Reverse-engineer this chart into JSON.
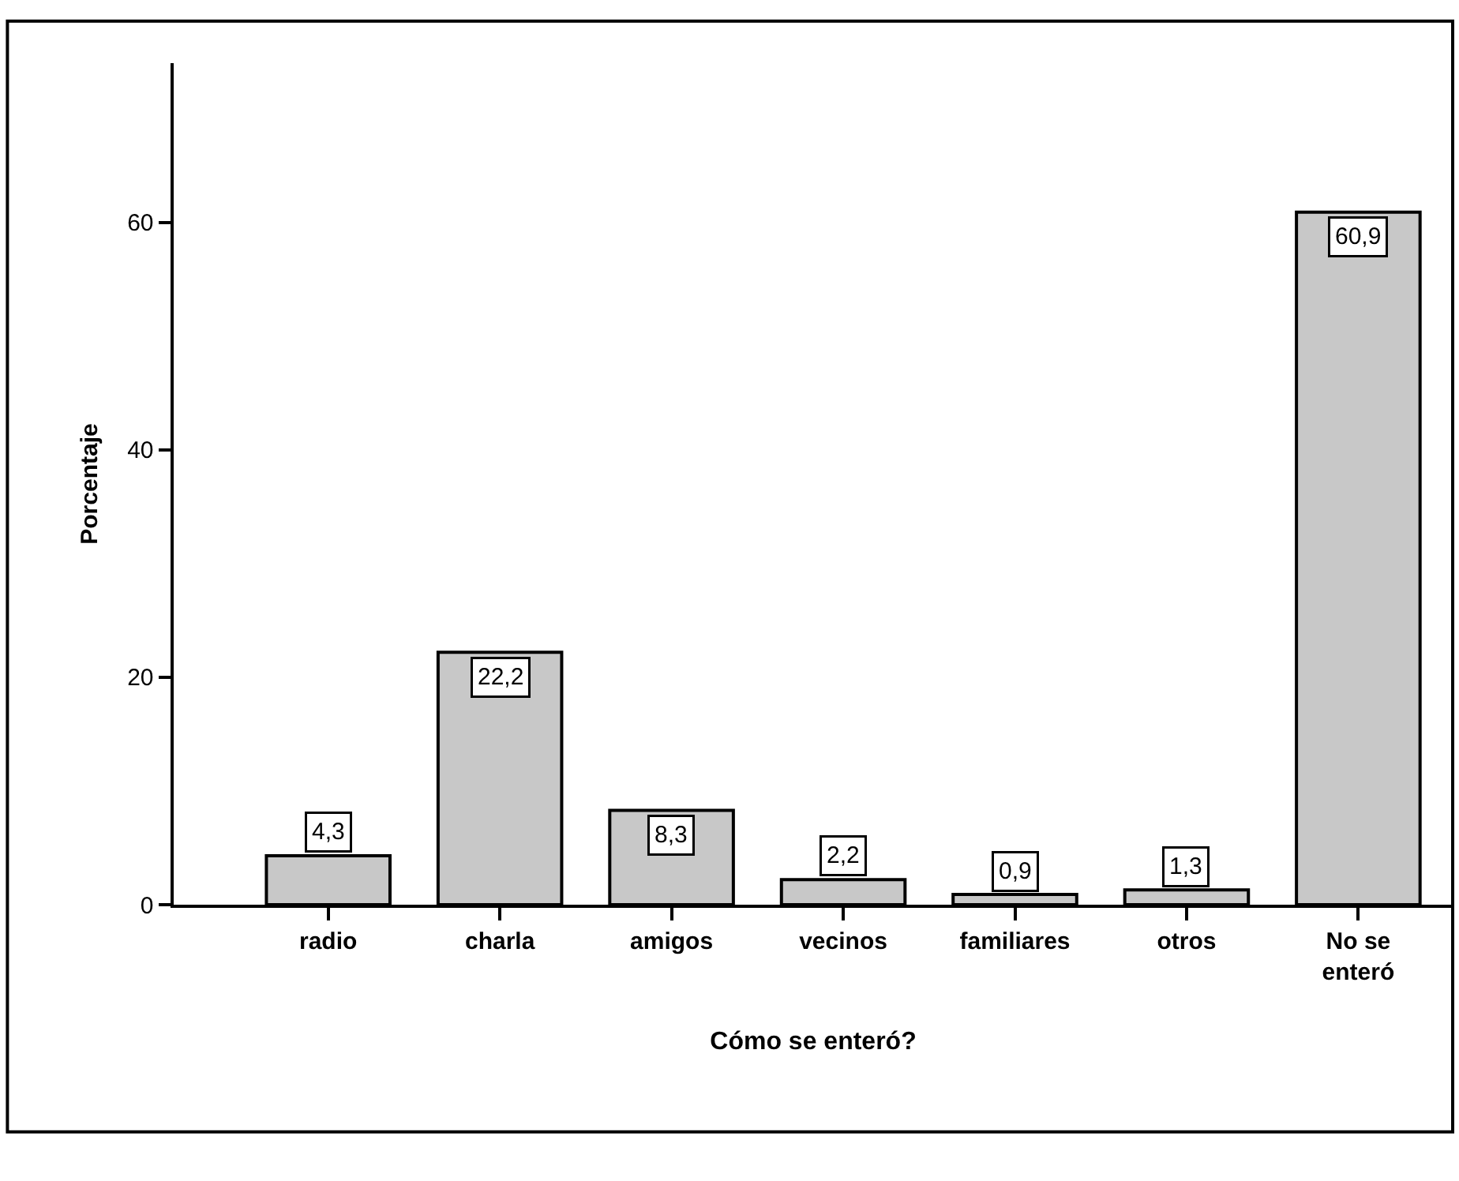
{
  "chart_data": {
    "type": "bar",
    "xlabel": "Cómo se enteró?",
    "ylabel": "Porcentaje",
    "categories": [
      "radio",
      "charla",
      "amigos",
      "vecinos",
      "familiares",
      "otros",
      "No se\nenteró"
    ],
    "values": [
      4.3,
      22.2,
      8.3,
      2.2,
      0.9,
      1.3,
      60.9
    ],
    "value_labels": [
      "4,3",
      "22,2",
      "8,3",
      "2,2",
      "0,9",
      "1,3",
      "60,9"
    ],
    "color": "#c8c8c8",
    "ylim": [
      0,
      74
    ],
    "yticks": [
      0,
      20,
      40,
      60
    ]
  }
}
